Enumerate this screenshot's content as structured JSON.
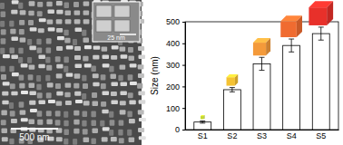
{
  "chart_data": {
    "type": "bar",
    "categories": [
      "S1",
      "S2",
      "S3",
      "S4",
      "S5"
    ],
    "values": [
      35,
      185,
      305,
      390,
      445
    ],
    "errors": [
      5,
      10,
      30,
      30,
      30
    ],
    "color": "#ffffff",
    "colors": [
      "#c5d92b",
      "#f5c232",
      "#f49a3a",
      "#f06b30",
      "#e8302a"
    ],
    "y_label": "Size (nm)",
    "ylim": [
      0,
      500
    ],
    "yticks": [
      0,
      100,
      200,
      300,
      400,
      500
    ],
    "grid": false
  },
  "image": {
    "scale_bar": "500 nm",
    "inset_scale_bar": "25 nm"
  }
}
